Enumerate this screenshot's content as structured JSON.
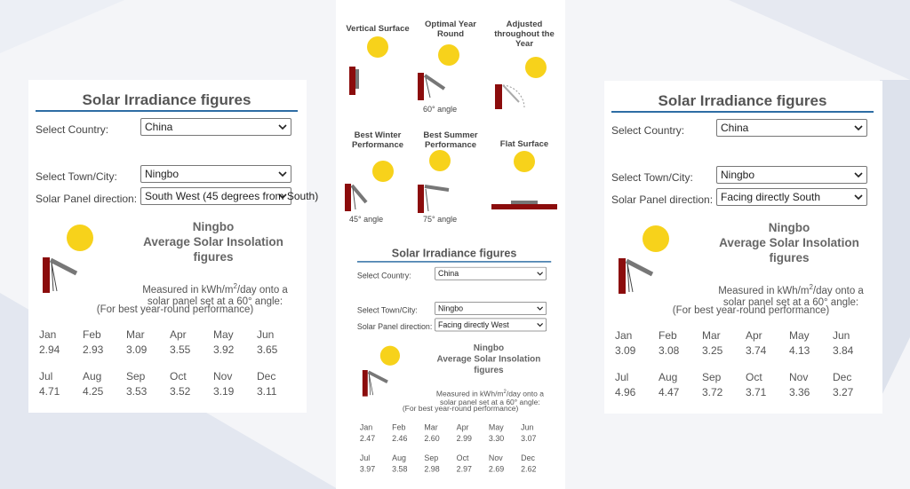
{
  "diagram": {
    "panels": [
      {
        "label": "Vertical Surface"
      },
      {
        "label": "Optimal Year Round",
        "angle": "60° angle"
      },
      {
        "label": "Adjusted throughout the Year"
      },
      {
        "label": "Best Winter Performance",
        "angle": "45° angle"
      },
      {
        "label": "Best Summer Performance",
        "angle": "75° angle"
      },
      {
        "label": "Flat Surface"
      }
    ]
  },
  "widgets": [
    {
      "title": "Solar Irradiance figures",
      "country_label": "Select Country:",
      "country": "China",
      "town_label": "Select Town/City:",
      "town": "Ningbo",
      "direction_label": "Solar Panel direction:",
      "direction": "South West (45 degrees from South)",
      "location": "Ningbo",
      "heading": "Average Solar Insolation figures",
      "measured_pre": "Measured in kWh/m",
      "measured_sup": "2",
      "measured_post": "/day onto a solar panel set at a 60° angle:",
      "note": "(For best year-round performance)",
      "months": [
        "Jan",
        "Feb",
        "Mar",
        "Apr",
        "May",
        "Jun",
        "Jul",
        "Aug",
        "Sep",
        "Oct",
        "Nov",
        "Dec"
      ],
      "values": [
        "2.94",
        "2.93",
        "3.09",
        "3.55",
        "3.92",
        "3.65",
        "4.71",
        "4.25",
        "3.53",
        "3.52",
        "3.19",
        "3.11"
      ]
    },
    {
      "title": "Solar Irradiance figures",
      "country_label": "Select Country:",
      "country": "China",
      "town_label": "Select Town/City:",
      "town": "Ningbo",
      "direction_label": "Solar Panel direction:",
      "direction": "Facing directly West",
      "location": "Ningbo",
      "heading": "Average Solar Insolation figures",
      "measured_pre": "Measured in kWh/m",
      "measured_sup": "2",
      "measured_post": "/day onto a solar panel set at a 60° angle:",
      "note": "(For best year-round performance)",
      "months": [
        "Jan",
        "Feb",
        "Mar",
        "Apr",
        "May",
        "Jun",
        "Jul",
        "Aug",
        "Sep",
        "Oct",
        "Nov",
        "Dec"
      ],
      "values": [
        "2.47",
        "2.46",
        "2.60",
        "2.99",
        "3.30",
        "3.07",
        "3.97",
        "3.58",
        "2.98",
        "2.97",
        "2.69",
        "2.62"
      ]
    },
    {
      "title": "Solar Irradiance figures",
      "country_label": "Select Country:",
      "country": "China",
      "town_label": "Select Town/City:",
      "town": "Ningbo",
      "direction_label": "Solar Panel direction:",
      "direction": "Facing directly South",
      "location": "Ningbo",
      "heading": "Average Solar Insolation figures",
      "measured_pre": "Measured in kWh/m",
      "measured_sup": "2",
      "measured_post": "/day onto a solar panel set at a 60° angle:",
      "note": "(For best year-round performance)",
      "months": [
        "Jan",
        "Feb",
        "Mar",
        "Apr",
        "May",
        "Jun",
        "Jul",
        "Aug",
        "Sep",
        "Oct",
        "Nov",
        "Dec"
      ],
      "values": [
        "3.09",
        "3.08",
        "3.25",
        "3.74",
        "4.13",
        "3.84",
        "4.96",
        "4.47",
        "3.72",
        "3.71",
        "3.36",
        "3.27"
      ]
    }
  ]
}
